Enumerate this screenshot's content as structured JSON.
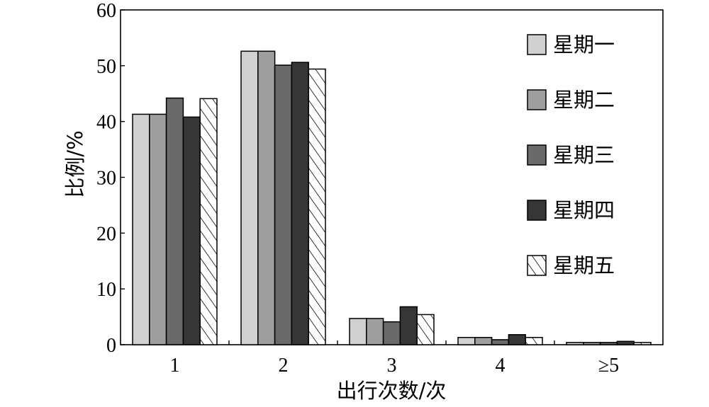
{
  "chart_data": {
    "type": "bar",
    "title": "",
    "xlabel": "出行次数/次",
    "ylabel": "比例/%",
    "categories": [
      "1",
      "2",
      "3",
      "4",
      "≥5"
    ],
    "ylim": [
      0,
      60
    ],
    "yticks": [
      "0",
      "10",
      "20",
      "30",
      "40",
      "50",
      "60"
    ],
    "legend_position": "top-right",
    "grid": false,
    "series": [
      {
        "name": "星期一",
        "color": "#d0d0d0",
        "pattern": "solid",
        "values": [
          41.3,
          52.6,
          4.7,
          1.3,
          0.4
        ]
      },
      {
        "name": "星期二",
        "color": "#9e9e9e",
        "pattern": "solid",
        "values": [
          41.3,
          52.6,
          4.7,
          1.3,
          0.4
        ]
      },
      {
        "name": "星期三",
        "color": "#6a6a6a",
        "pattern": "solid",
        "values": [
          44.2,
          50.1,
          4.1,
          0.9,
          0.4
        ]
      },
      {
        "name": "星期四",
        "color": "#363636",
        "pattern": "solid",
        "values": [
          40.8,
          50.6,
          6.8,
          1.8,
          0.6
        ]
      },
      {
        "name": "星期五",
        "color": "#ffffff",
        "pattern": "hatched",
        "values": [
          44.1,
          49.4,
          5.4,
          1.3,
          0.4
        ]
      }
    ]
  }
}
